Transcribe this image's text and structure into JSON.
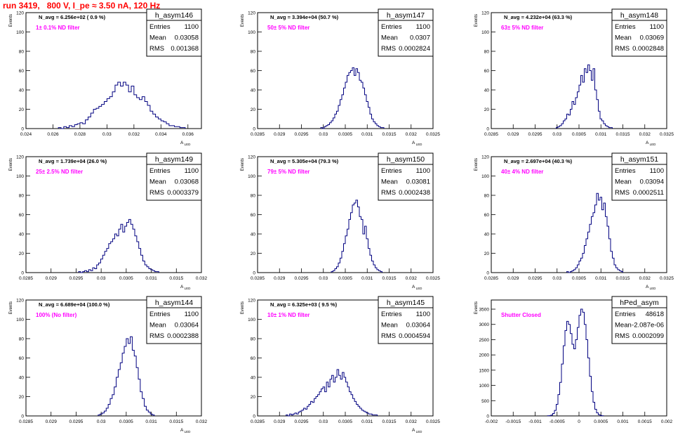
{
  "page": {
    "title": "run 3419,   800 V, I_pe ≈ 3.50 nA, 120 Hz",
    "title_color": "#ff0000"
  },
  "chart_data": [
    {
      "type": "bar",
      "hist_name": "h_asym146",
      "stats": {
        "entries_label": "Entries",
        "entries": "1100",
        "mean_label": "Mean",
        "mean": "0.03058",
        "rms_label": "RMS",
        "rms": "0.001368"
      },
      "navg_label": "N_avg = 6.256e+02 ( 0.9 %)",
      "filter_label": "1± 0.1% ND filter",
      "ylabel": "Events",
      "xlabel": "A_LED",
      "xlim": [
        0.024,
        0.037
      ],
      "ylim": [
        0,
        120
      ],
      "xticks": [
        0.024,
        0.026,
        0.028,
        0.03,
        0.032,
        0.034,
        0.036
      ],
      "xtick_labels": [
        "0.024",
        "0.026",
        "0.028",
        "0.03",
        "0.032",
        "0.034",
        "0.036"
      ],
      "yticks": [
        0,
        20,
        40,
        60,
        80,
        100,
        120
      ],
      "ytick_labels": [
        "0",
        "20",
        "40",
        "60",
        "80",
        "100",
        "120"
      ],
      "bins": {
        "start": 0.0264,
        "width": 0.0002,
        "values": [
          1,
          0,
          2,
          1,
          3,
          2,
          4,
          5,
          6,
          5,
          9,
          12,
          16,
          20,
          21,
          23,
          25,
          28,
          31,
          33,
          38,
          45,
          48,
          44,
          48,
          45,
          38,
          44,
          35,
          32,
          30,
          33,
          28,
          24,
          18,
          15,
          12,
          10,
          8,
          7,
          5,
          3,
          3,
          2,
          2,
          1,
          1
        ]
      }
    },
    {
      "type": "bar",
      "hist_name": "h_asym147",
      "stats": {
        "entries_label": "Entries",
        "entries": "1100",
        "mean_label": "Mean",
        "mean": "0.0307",
        "rms_label": "RMS",
        "rms": "0.0002824"
      },
      "navg_label": "N_avg = 3.394e+04 (50.7 %)",
      "filter_label": "50± 5% ND filter",
      "ylabel": "Events",
      "xlabel": "A_LED",
      "xlim": [
        0.0285,
        0.0325
      ],
      "ylim": [
        0,
        120
      ],
      "xticks": [
        0.0285,
        0.029,
        0.0295,
        0.03,
        0.0305,
        0.031,
        0.0315,
        0.032,
        0.0325
      ],
      "xtick_labels": [
        "0.0285",
        "0.029",
        "0.0295",
        "0.03",
        "0.0305",
        "0.031",
        "0.0315",
        "0.032",
        "0.0325"
      ],
      "yticks": [
        0,
        20,
        40,
        60,
        80,
        100,
        120
      ],
      "ytick_labels": [
        "0",
        "20",
        "40",
        "60",
        "80",
        "100",
        "120"
      ],
      "bins": {
        "start": 0.02994,
        "width": 4e-05,
        "values": [
          1,
          0,
          2,
          3,
          4,
          6,
          8,
          11,
          15,
          18,
          24,
          30,
          35,
          42,
          48,
          55,
          58,
          60,
          63,
          55,
          62,
          58,
          50,
          48,
          42,
          35,
          28,
          22,
          15,
          10,
          7,
          5,
          3,
          2,
          1,
          1
        ]
      }
    },
    {
      "type": "bar",
      "hist_name": "h_asym148",
      "stats": {
        "entries_label": "Entries",
        "entries": "1100",
        "mean_label": "Mean",
        "mean": "0.03069",
        "rms_label": "RMS",
        "rms": "0.0002848"
      },
      "navg_label": "N_avg = 4.232e+04 (63.3 %)",
      "filter_label": "63± 5% ND filter",
      "ylabel": "Events",
      "xlabel": "A_LED",
      "xlim": [
        0.0285,
        0.0325
      ],
      "ylim": [
        0,
        120
      ],
      "xticks": [
        0.0285,
        0.029,
        0.0295,
        0.03,
        0.0305,
        0.031,
        0.0315,
        0.032,
        0.0325
      ],
      "xtick_labels": [
        "0.0285",
        "0.029",
        "0.0295",
        "0.03",
        "0.0305",
        "0.031",
        "0.0315",
        "0.032",
        "0.0325"
      ],
      "yticks": [
        0,
        20,
        40,
        60,
        80,
        100,
        120
      ],
      "ytick_labels": [
        "0",
        "20",
        "40",
        "60",
        "80",
        "100",
        "120"
      ],
      "bins": {
        "start": 0.02998,
        "width": 4e-05,
        "values": [
          1,
          2,
          3,
          5,
          8,
          10,
          15,
          14,
          20,
          28,
          25,
          32,
          38,
          45,
          55,
          48,
          62,
          58,
          66,
          60,
          50,
          62,
          40,
          30,
          18,
          10,
          8,
          5,
          3,
          2,
          1,
          1
        ]
      }
    },
    {
      "type": "bar",
      "hist_name": "h_asym149",
      "stats": {
        "entries_label": "Entries",
        "entries": "1100",
        "mean_label": "Mean",
        "mean": "0.03068",
        "rms_label": "RMS",
        "rms": "0.0003379"
      },
      "navg_label": "N_avg = 1.739e+04 (26.0 %)",
      "filter_label": "25± 2.5% ND filter",
      "ylabel": "Events",
      "xlabel": "A_LED",
      "xlim": [
        0.0285,
        0.032
      ],
      "ylim": [
        0,
        120
      ],
      "xticks": [
        0.0285,
        0.029,
        0.0295,
        0.03,
        0.0305,
        0.031,
        0.0315,
        0.032
      ],
      "xtick_labels": [
        "0.0285",
        "0.029",
        "0.0295",
        "0.03",
        "0.0305",
        "0.031",
        "0.0315",
        "0.032"
      ],
      "yticks": [
        0,
        20,
        40,
        60,
        80,
        100,
        120
      ],
      "ytick_labels": [
        "0",
        "20",
        "40",
        "60",
        "80",
        "100",
        "120"
      ],
      "bins": {
        "start": 0.02955,
        "width": 4e-05,
        "values": [
          1,
          0,
          1,
          2,
          1,
          3,
          2,
          5,
          4,
          8,
          10,
          14,
          18,
          22,
          25,
          30,
          32,
          35,
          40,
          38,
          45,
          50,
          42,
          48,
          52,
          55,
          50,
          45,
          38,
          32,
          25,
          18,
          12,
          8,
          6,
          4,
          3,
          2,
          1,
          1
        ]
      }
    },
    {
      "type": "bar",
      "hist_name": "h_asym150",
      "stats": {
        "entries_label": "Entries",
        "entries": "1100",
        "mean_label": "Mean",
        "mean": "0.03081",
        "rms_label": "RMS",
        "rms": "0.0002438"
      },
      "navg_label": "N_avg = 5.305e+04 (79.3 %)",
      "filter_label": "79± 5% ND filter",
      "ylabel": "Events",
      "xlabel": "A_LED",
      "xlim": [
        0.0285,
        0.0325
      ],
      "ylim": [
        0,
        120
      ],
      "xticks": [
        0.0285,
        0.029,
        0.0295,
        0.03,
        0.0305,
        0.031,
        0.0315,
        0.032,
        0.0325
      ],
      "xtick_labels": [
        "0.0285",
        "0.029",
        "0.0295",
        "0.03",
        "0.0305",
        "0.031",
        "0.0315",
        "0.032",
        "0.0325"
      ],
      "yticks": [
        0,
        20,
        40,
        60,
        80,
        100,
        120
      ],
      "ytick_labels": [
        "0",
        "20",
        "40",
        "60",
        "80",
        "100",
        "120"
      ],
      "bins": {
        "start": 0.03018,
        "width": 4e-05,
        "values": [
          1,
          2,
          4,
          6,
          10,
          15,
          22,
          30,
          38,
          45,
          55,
          62,
          70,
          72,
          75,
          68,
          58,
          55,
          40,
          48,
          35,
          25,
          18,
          12,
          8,
          5,
          3,
          2,
          1
        ]
      }
    },
    {
      "type": "bar",
      "hist_name": "h_asym151",
      "stats": {
        "entries_label": "Entries",
        "entries": "1100",
        "mean_label": "Mean",
        "mean": "0.03094",
        "rms_label": "RMS",
        "rms": "0.0002511"
      },
      "navg_label": "N_avg = 2.697e+04 (40.3 %)",
      "filter_label": "40± 4% ND filter",
      "ylabel": "Events",
      "xlabel": "A_LED",
      "xlim": [
        0.0285,
        0.0325
      ],
      "ylim": [
        0,
        120
      ],
      "xticks": [
        0.0285,
        0.029,
        0.0295,
        0.03,
        0.0305,
        0.031,
        0.0315,
        0.032,
        0.0325
      ],
      "xtick_labels": [
        "0.0285",
        "0.029",
        "0.0295",
        "0.03",
        "0.0305",
        "0.031",
        "0.0315",
        "0.032",
        "0.0325"
      ],
      "yticks": [
        0,
        20,
        40,
        60,
        80,
        100,
        120
      ],
      "ytick_labels": [
        "0",
        "20",
        "40",
        "60",
        "80",
        "100",
        "120"
      ],
      "bins": {
        "start": 0.03022,
        "width": 4e-05,
        "values": [
          1,
          0,
          1,
          2,
          3,
          5,
          8,
          12,
          15,
          20,
          28,
          35,
          42,
          50,
          58,
          62,
          70,
          82,
          75,
          78,
          65,
          72,
          58,
          48,
          35,
          22,
          15,
          8,
          5,
          3,
          2,
          1
        ]
      }
    },
    {
      "type": "bar",
      "hist_name": "h_asym144",
      "stats": {
        "entries_label": "Entries",
        "entries": "1100",
        "mean_label": "Mean",
        "mean": "0.03064",
        "rms_label": "RMS",
        "rms": "0.0002388"
      },
      "navg_label": "N_avg = 6.689e+04 (100.0 %)",
      "filter_label": "100% (No filter)",
      "ylabel": "Events",
      "xlabel": "A_LED",
      "xlim": [
        0.0285,
        0.032
      ],
      "ylim": [
        0,
        120
      ],
      "xticks": [
        0.0285,
        0.029,
        0.0295,
        0.03,
        0.0305,
        0.031,
        0.0315,
        0.032
      ],
      "xtick_labels": [
        "0.0285",
        "0.029",
        "0.0295",
        "0.03",
        "0.0305",
        "0.031",
        "0.0315",
        "0.032"
      ],
      "yticks": [
        0,
        20,
        40,
        60,
        80,
        100,
        120
      ],
      "ytick_labels": [
        "0",
        "20",
        "40",
        "60",
        "80",
        "100",
        "120"
      ],
      "bins": {
        "start": 0.02994,
        "width": 4e-05,
        "values": [
          1,
          2,
          3,
          5,
          8,
          12,
          18,
          22,
          30,
          40,
          48,
          55,
          65,
          72,
          80,
          75,
          82,
          68,
          62,
          50,
          38,
          25,
          18,
          10,
          6,
          4,
          2,
          1
        ]
      }
    },
    {
      "type": "bar",
      "hist_name": "h_asym145",
      "stats": {
        "entries_label": "Entries",
        "entries": "1100",
        "mean_label": "Mean",
        "mean": "0.03064",
        "rms_label": "RMS",
        "rms": "0.0004594"
      },
      "navg_label": "N_avg = 6.325e+03 ( 9.5 %)",
      "filter_label": "10± 1% ND filter",
      "ylabel": "Events",
      "xlabel": "A_LED",
      "xlim": [
        0.0285,
        0.0325
      ],
      "ylim": [
        0,
        120
      ],
      "xticks": [
        0.0285,
        0.029,
        0.0295,
        0.03,
        0.0305,
        0.031,
        0.0315,
        0.032,
        0.0325
      ],
      "xtick_labels": [
        "0.0285",
        "0.029",
        "0.0295",
        "0.03",
        "0.0305",
        "0.031",
        "0.0315",
        "0.032",
        "0.0325"
      ],
      "yticks": [
        0,
        20,
        40,
        60,
        80,
        100,
        120
      ],
      "ytick_labels": [
        "0",
        "20",
        "40",
        "60",
        "80",
        "100",
        "120"
      ],
      "bins": {
        "start": 0.02915,
        "width": 4e-05,
        "values": [
          1,
          0,
          2,
          1,
          2,
          3,
          2,
          4,
          5,
          6,
          8,
          7,
          10,
          12,
          15,
          14,
          18,
          20,
          22,
          25,
          28,
          30,
          25,
          35,
          30,
          38,
          42,
          35,
          40,
          48,
          42,
          38,
          45,
          40,
          35,
          30,
          25,
          22,
          18,
          15,
          12,
          10,
          8,
          6,
          5,
          4,
          3,
          2,
          2,
          1,
          1,
          1
        ]
      }
    },
    {
      "type": "bar",
      "hist_name": "hPed_asym",
      "stats": {
        "entries_label": "Entries",
        "entries": "48618",
        "mean_label": "Mean",
        "mean": "-2.087e-06",
        "rms_label": "RMS",
        "rms": "0.0002099"
      },
      "navg_label": "",
      "filter_label": "Shutter Closed",
      "ylabel": "Events",
      "xlabel": "",
      "xlim": [
        -0.002,
        0.002
      ],
      "ylim": [
        0,
        3800
      ],
      "xticks": [
        -0.002,
        -0.0015,
        -0.001,
        -0.0005,
        0,
        0.0005,
        0.001,
        0.0015,
        0.002
      ],
      "xtick_labels": [
        "-0.002",
        "-0.0015",
        "-0.001",
        "-0.0005",
        "0",
        "0.0005",
        "0.001",
        "0.0015",
        "0.002"
      ],
      "yticks": [
        0,
        500,
        1000,
        1500,
        2000,
        2500,
        3000,
        3500
      ],
      "ytick_labels": [
        "0",
        "500",
        "1000",
        "1500",
        "2000",
        "2500",
        "3000",
        "3500"
      ],
      "bins": {
        "start": -0.00072,
        "width": 4e-05,
        "values": [
          5,
          10,
          30,
          80,
          180,
          380,
          700,
          1100,
          1700,
          2300,
          2800,
          3100,
          3000,
          2700,
          2350,
          2200,
          2500,
          2900,
          3300,
          3500,
          3400,
          3000,
          2500,
          1900,
          1300,
          800,
          450,
          220,
          100,
          40,
          15,
          5
        ]
      }
    }
  ]
}
